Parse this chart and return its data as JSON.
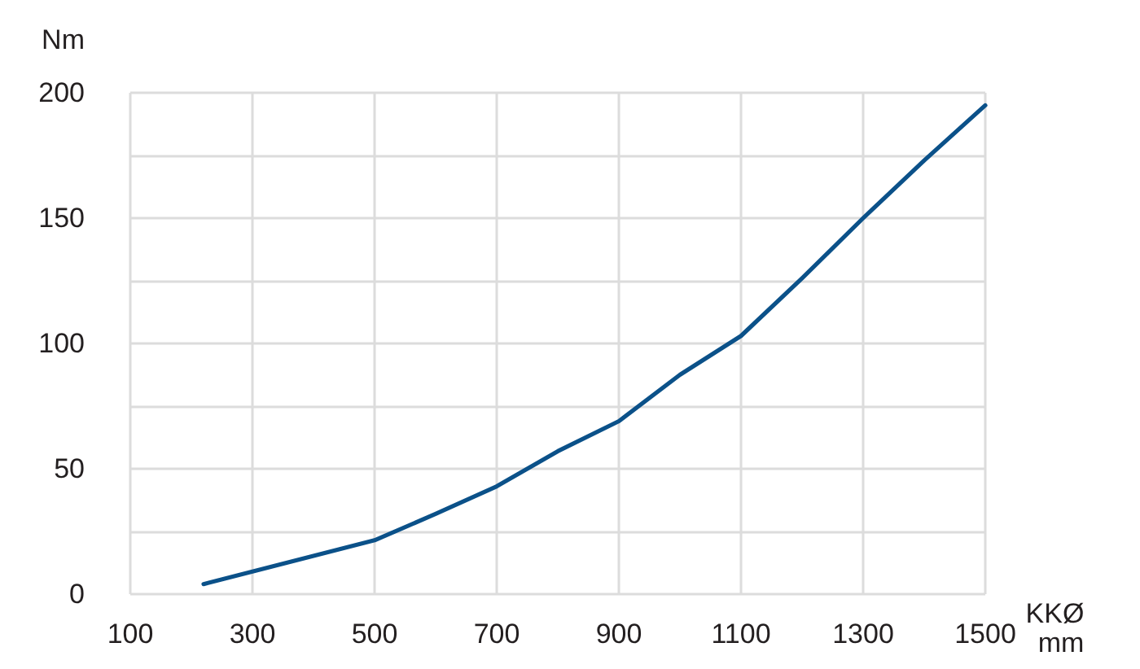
{
  "chart_data": {
    "type": "line",
    "xlabel": "KKØ mm",
    "ylabel": "Nm",
    "x": [
      220,
      300,
      500,
      600,
      700,
      800,
      900,
      1000,
      1100,
      1200,
      1300,
      1400,
      1500
    ],
    "values": [
      4,
      9,
      21.5,
      32,
      43,
      57,
      69,
      87.5,
      103,
      126,
      150,
      173,
      195
    ],
    "color": "#0b5189",
    "marker": "none",
    "line_style": "solid",
    "xlim": [
      100,
      1500
    ],
    "xticks": [
      100,
      300,
      500,
      700,
      900,
      1100,
      1300,
      1500
    ],
    "ylim": [
      0,
      200
    ],
    "yticks": [
      0,
      {
        "value": 25,
        "label": null
      },
      50,
      {
        "value": 75,
        "label": null
      },
      100,
      {
        "value": 125,
        "label": null
      },
      150,
      {
        "value": 175,
        "label": null
      },
      200
    ],
    "grid": true
  }
}
